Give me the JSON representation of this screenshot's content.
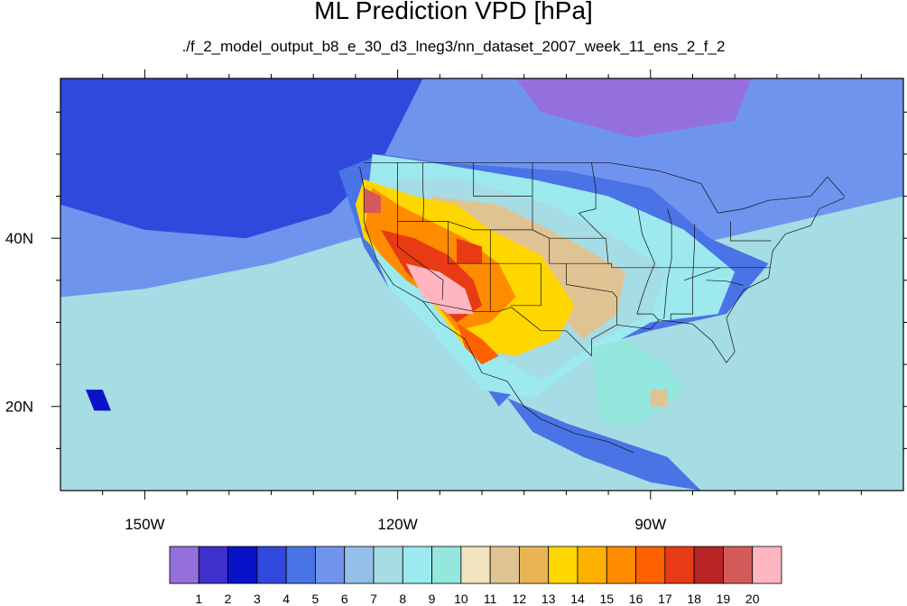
{
  "title": "ML Prediction VPD [hPa]",
  "subtitle": "./f_2_model_output_b8_e_30_d3_lneg3/nn_dataset_2007_week_11_ens_2_f_2",
  "chart_data": {
    "type": "heatmap",
    "title": "ML Prediction VPD [hPa]",
    "subtitle": "./f_2_model_output_b8_e_30_d3_lneg3/nn_dataset_2007_week_11_ens_2_f_2",
    "variable": "VPD",
    "units": "hPa",
    "lon_range": [
      -160,
      -60
    ],
    "lat_range": [
      10,
      59
    ],
    "x_ticks": [
      {
        "value": -150,
        "label": "150W"
      },
      {
        "value": -120,
        "label": "120W"
      },
      {
        "value": -90,
        "label": "90W"
      }
    ],
    "y_ticks": [
      {
        "value": 40,
        "label": "40N"
      },
      {
        "value": 20,
        "label": "20N"
      }
    ],
    "colorbar": {
      "labels": [
        "1",
        "2",
        "3",
        "4",
        "5",
        "6",
        "7",
        "8",
        "9",
        "10",
        "11",
        "12",
        "13",
        "14",
        "15",
        "16",
        "17",
        "18",
        "19",
        "20"
      ],
      "colors": [
        "#9370db",
        "#3f2fcc",
        "#0a12c8",
        "#2f49dc",
        "#4a73e6",
        "#6f94ee",
        "#93bfe8",
        "#a6dce4",
        "#9ce9ef",
        "#94e7dc",
        "#f3e4c0",
        "#e0c393",
        "#e8b552",
        "#ffd700",
        "#ffb100",
        "#ff8c00",
        "#ff6000",
        "#e83a14",
        "#b82424",
        "#d45a5a",
        "#ffb6c1"
      ]
    }
  }
}
